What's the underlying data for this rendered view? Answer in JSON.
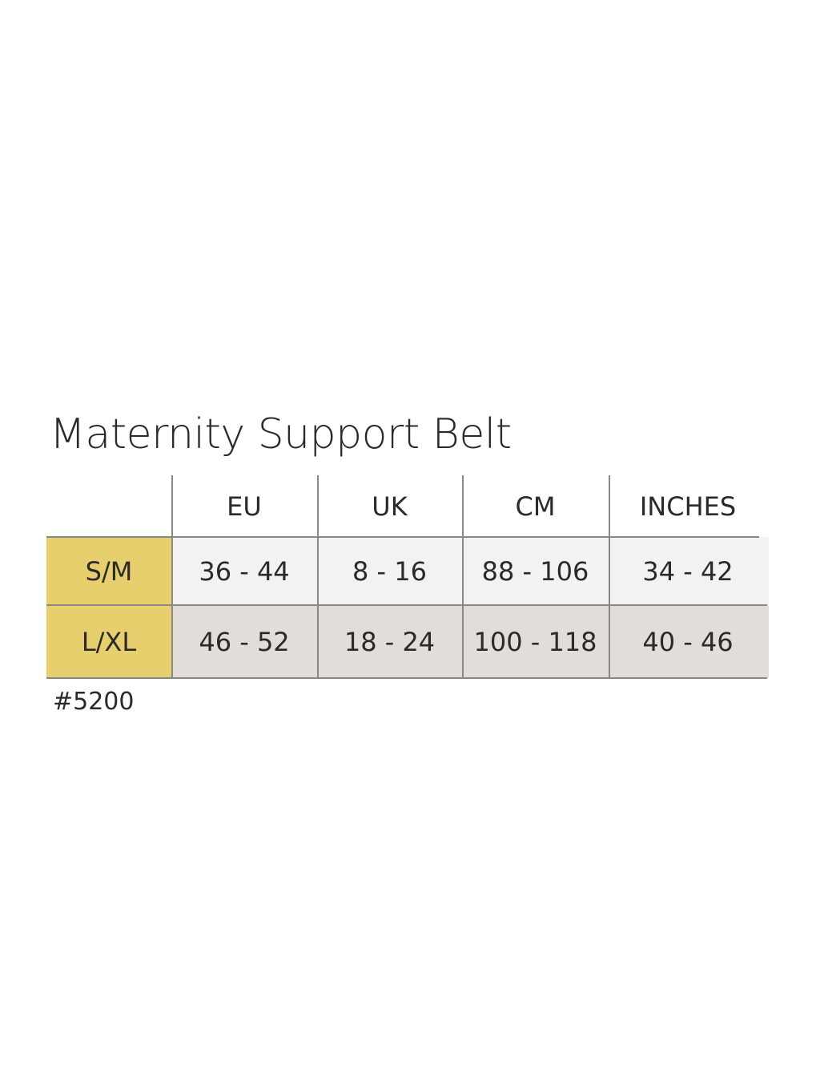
{
  "title": "Maternity Support Belt",
  "table": {
    "header": [
      "EU",
      "UK",
      "CM",
      "INCHES"
    ],
    "rows": [
      [
        "S/M",
        "36 - 44",
        "8 - 16",
        "88 - 106",
        "34 - 42"
      ],
      [
        "L/XL",
        "46 - 52",
        "18 - 24",
        "100 - 118",
        "40 - 46"
      ]
    ]
  },
  "footnote": "#5200"
}
